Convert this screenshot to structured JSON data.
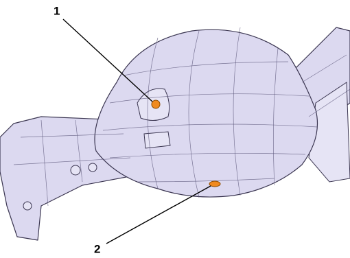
{
  "callouts": [
    {
      "label": "1"
    },
    {
      "label": "2"
    }
  ]
}
